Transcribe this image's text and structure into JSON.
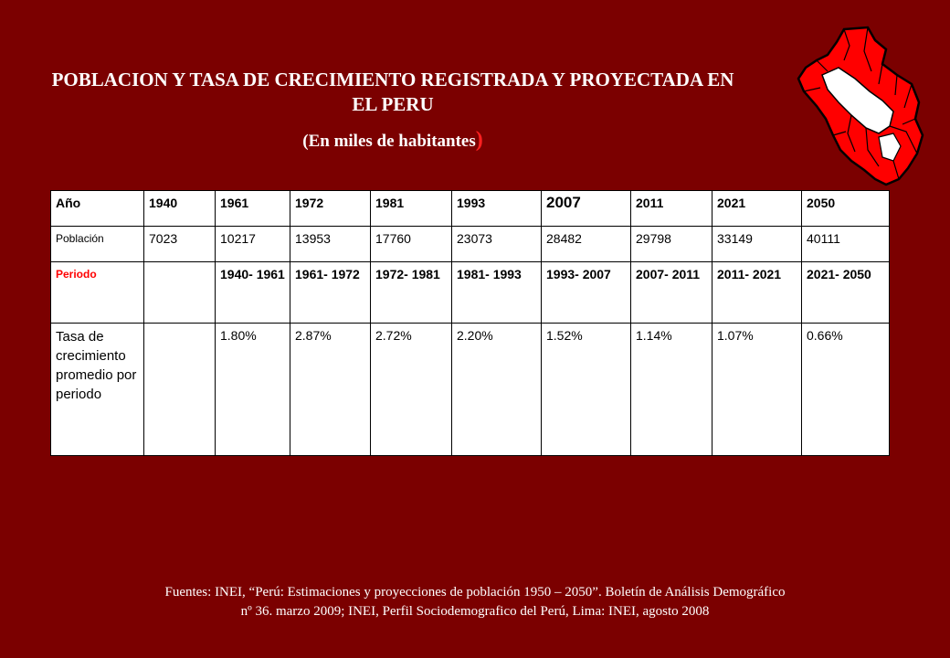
{
  "header": {
    "title": "POBLACION Y TASA DE CRECIMIENTO REGISTRADA Y PROYECTADA EN EL PERU",
    "subtitle": "(En miles de habitantes",
    "subtitle_close": ")"
  },
  "map": {
    "icon": "peru-map-icon",
    "fill_color": "#ff0000",
    "line_color": "#000000"
  },
  "table": {
    "year_label": "Año",
    "years": [
      "1940",
      "1961",
      "1972",
      "1981",
      "1993",
      "2007",
      "2011",
      "2021",
      "2050"
    ],
    "population_label": "Población",
    "population": [
      "7023",
      "10217",
      "13953",
      "17760",
      "23073",
      "28482",
      "29798",
      "33149",
      "40111"
    ],
    "period_label": "Periodo",
    "periods": [
      "",
      "1940- 1961",
      "1961- 1972",
      "1972- 1981",
      "1981- 1993",
      "1993- 2007",
      "2007- 2011",
      "2011- 2021",
      "2021- 2050"
    ],
    "rate_label": "Tasa de crecimiento promedio por periodo",
    "rates": [
      "",
      "1.80%",
      "2.87%",
      "2.72%",
      "2.20%",
      "1.52%",
      "1.14%",
      "1.07%",
      "0.66%"
    ]
  },
  "footer": {
    "source_line1": "Fuentes: INEI, “Perú: Estimaciones y proyecciones de población 1950 – 2050”. Boletín de Análisis Demográfico",
    "source_line2": "nº 36. marzo 2009; INEI, Perfil Sociodemografico del Perú, Lima: INEI, agosto 2008"
  }
}
